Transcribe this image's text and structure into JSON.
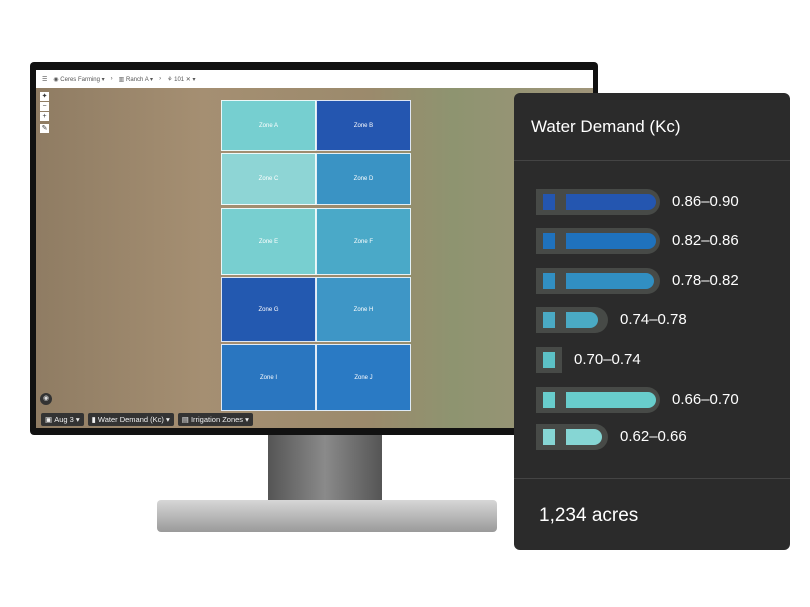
{
  "toolbar": {
    "org": "Ceres Farming",
    "ranch": "Ranch A",
    "block": "101"
  },
  "map": {
    "zones": [
      {
        "label": "Zone A",
        "color": "#76cfd0"
      },
      {
        "label": "Zone B",
        "color": "#2456b0"
      },
      {
        "label": "Zone C",
        "color": "#8ed5d5"
      },
      {
        "label": "Zone D",
        "color": "#3a93c4"
      },
      {
        "label": "Zone E",
        "color": "#78cfd0"
      },
      {
        "label": "Zone F",
        "color": "#4aa9c8"
      },
      {
        "label": "Zone G",
        "color": "#2359b0"
      },
      {
        "label": "Zone H",
        "color": "#3e96c6"
      },
      {
        "label": "Zone I",
        "color": "#2a76c0"
      },
      {
        "label": "Zone J",
        "color": "#2a7ac4"
      }
    ],
    "chips": {
      "date": "Aug 3",
      "layer": "Water Demand (Kc)",
      "zones": "Irrigation Zones"
    }
  },
  "legend": {
    "title": "Water Demand (Kc)",
    "items": [
      {
        "range": "0.86–0.90",
        "color": "#2456b0"
      },
      {
        "range": "0.82–0.86",
        "color": "#1f72bd"
      },
      {
        "range": "0.78–0.82",
        "color": "#318fc2"
      },
      {
        "range": "0.74–0.78",
        "color": "#4aaac4"
      },
      {
        "range": "0.70–0.74",
        "color": "#5cc1c6"
      },
      {
        "range": "0.66–0.70",
        "color": "#68cdcc"
      },
      {
        "range": "0.62–0.66",
        "color": "#86d6d4"
      }
    ],
    "total": "1,234 acres"
  }
}
